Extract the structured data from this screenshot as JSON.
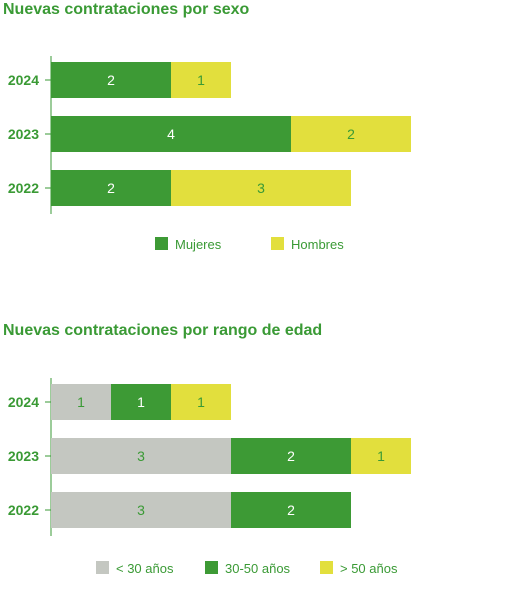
{
  "chart_data": [
    {
      "type": "bar",
      "orientation": "horizontal",
      "stacked": true,
      "title": "Nuevas contrataciones por sexo",
      "categories": [
        "2024",
        "2023",
        "2022"
      ],
      "series": [
        {
          "name": "Mujeres",
          "values": [
            2,
            4,
            2
          ],
          "color": "#3d9a35",
          "label_color": "#ffffff"
        },
        {
          "name": "Hombres",
          "values": [
            1,
            2,
            3
          ],
          "color": "#e2df3d",
          "label_color": "#3a9a35"
        }
      ],
      "xlim": [
        0,
        8
      ],
      "grid": false,
      "legend": "bottom"
    },
    {
      "type": "bar",
      "orientation": "horizontal",
      "stacked": true,
      "title": "Nuevas contrataciones por rango de edad",
      "categories": [
        "2024",
        "2023",
        "2022"
      ],
      "series": [
        {
          "name": "< 30 años",
          "values": [
            1,
            3,
            3
          ],
          "color": "#c4c7c1",
          "label_color": "#3a9a35"
        },
        {
          "name": "30-50 años",
          "values": [
            1,
            2,
            2
          ],
          "color": "#3d9a35",
          "label_color": "#ffffff"
        },
        {
          "name": "> 50 años",
          "values": [
            1,
            1,
            0
          ],
          "color": "#e2df3d",
          "label_color": "#3a9a35"
        }
      ],
      "xlim": [
        0,
        8
      ],
      "grid": false,
      "legend": "bottom"
    }
  ]
}
